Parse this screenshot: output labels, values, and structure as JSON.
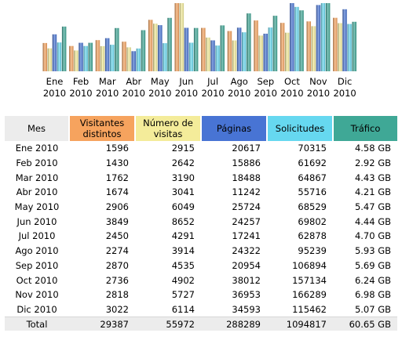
{
  "colors": {
    "visitantes": "#f6a35e",
    "visitas": "#f4ec9a",
    "paginas": "#4874d4",
    "solicitudes": "#66d8f0",
    "trafico": "#3fa896",
    "header_mes": "#ececec",
    "total_row": "#ececec"
  },
  "chart_data": {
    "type": "bar",
    "categories": [
      [
        "Ene",
        "2010"
      ],
      [
        "Feb",
        "2010"
      ],
      [
        "Mar",
        "2010"
      ],
      [
        "Abr",
        "2010"
      ],
      [
        "May",
        "2010"
      ],
      [
        "Jun",
        "2010"
      ],
      [
        "Jul",
        "2010"
      ],
      [
        "Ago",
        "2010"
      ],
      [
        "Sep",
        "2010"
      ],
      [
        "Oct",
        "2010"
      ],
      [
        "Nov",
        "2010"
      ],
      [
        "Dic",
        "2010"
      ]
    ],
    "series": [
      {
        "key": "visitantes",
        "values": [
          1596,
          1430,
          1762,
          1674,
          2906,
          3849,
          2450,
          2274,
          2870,
          2736,
          2818,
          3022
        ]
      },
      {
        "key": "visitas",
        "values": [
          2915,
          2642,
          3190,
          3041,
          6049,
          8652,
          4291,
          3914,
          4535,
          4902,
          5727,
          6114
        ]
      },
      {
        "key": "paginas",
        "values": [
          20617,
          15886,
          18488,
          11242,
          25724,
          24257,
          17241,
          24322,
          20954,
          38012,
          36953,
          34593
        ]
      },
      {
        "key": "solicitudes",
        "values": [
          70315,
          61692,
          64867,
          55716,
          68529,
          69802,
          62878,
          95239,
          106894,
          157134,
          166289,
          115462
        ]
      },
      {
        "key": "trafico",
        "values": [
          4.58,
          2.92,
          4.43,
          4.21,
          5.47,
          4.44,
          4.7,
          5.93,
          5.69,
          6.24,
          6.98,
          5.07
        ]
      }
    ]
  },
  "table": {
    "headers": {
      "mes": "Mes",
      "visitantes": [
        "Visitantes",
        "distintos"
      ],
      "visitas": [
        "Número de",
        "visitas"
      ],
      "paginas": "Páginas",
      "solicitudes": "Solicitudes",
      "trafico": "Tráfico"
    },
    "rows": [
      [
        "Ene 2010",
        "1596",
        "2915",
        "20617",
        "70315",
        "4.58 GB"
      ],
      [
        "Feb 2010",
        "1430",
        "2642",
        "15886",
        "61692",
        "2.92 GB"
      ],
      [
        "Mar 2010",
        "1762",
        "3190",
        "18488",
        "64867",
        "4.43 GB"
      ],
      [
        "Abr 2010",
        "1674",
        "3041",
        "11242",
        "55716",
        "4.21 GB"
      ],
      [
        "May 2010",
        "2906",
        "6049",
        "25724",
        "68529",
        "5.47 GB"
      ],
      [
        "Jun 2010",
        "3849",
        "8652",
        "24257",
        "69802",
        "4.44 GB"
      ],
      [
        "Jul 2010",
        "2450",
        "4291",
        "17241",
        "62878",
        "4.70 GB"
      ],
      [
        "Ago 2010",
        "2274",
        "3914",
        "24322",
        "95239",
        "5.93 GB"
      ],
      [
        "Sep 2010",
        "2870",
        "4535",
        "20954",
        "106894",
        "5.69 GB"
      ],
      [
        "Oct 2010",
        "2736",
        "4902",
        "38012",
        "157134",
        "6.24 GB"
      ],
      [
        "Nov 2010",
        "2818",
        "5727",
        "36953",
        "166289",
        "6.98 GB"
      ],
      [
        "Dic 2010",
        "3022",
        "6114",
        "34593",
        "115462",
        "5.07 GB"
      ]
    ],
    "total": [
      "Total",
      "29387",
      "55972",
      "288289",
      "1094817",
      "60.65 GB"
    ]
  }
}
